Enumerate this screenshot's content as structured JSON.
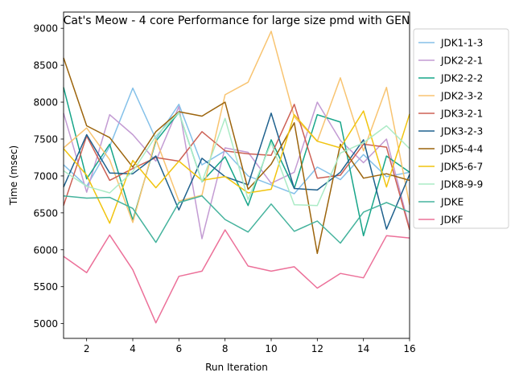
{
  "chart_data": {
    "type": "line",
    "title": "Cat's Meow - 4 core Performance for large size pmd with GEN",
    "xlabel": "Run Iteration",
    "ylabel": "Time (msec)",
    "xlim": [
      1,
      16
    ],
    "ylim": [
      4800,
      9220
    ],
    "x_ticks": [
      2,
      4,
      6,
      8,
      10,
      12,
      14,
      16
    ],
    "y_ticks": [
      5000,
      5500,
      6000,
      6500,
      7000,
      7500,
      8000,
      8500,
      9000
    ],
    "grid": false,
    "legend_position": "outside upper right",
    "x": [
      1,
      2,
      3,
      4,
      5,
      6,
      7,
      8,
      9,
      10,
      11,
      12,
      13,
      14,
      15,
      16
    ],
    "series": [
      {
        "name": "JDK1-1-3",
        "color": "#85c1e9",
        "values": [
          7150,
          6860,
          7400,
          8190,
          7500,
          7970,
          7150,
          7340,
          7000,
          6880,
          6760,
          7120,
          6950,
          7290,
          6990,
          7050
        ]
      },
      {
        "name": "JDK2-2-1",
        "color": "#c39bd3",
        "values": [
          7850,
          6780,
          7830,
          7560,
          7200,
          7940,
          6150,
          7380,
          7320,
          6900,
          7050,
          8000,
          7480,
          7180,
          7500,
          6290
        ]
      },
      {
        "name": "JDK2-2-2",
        "color": "#17a589",
        "values": [
          8200,
          6960,
          7430,
          6400,
          7470,
          7860,
          6920,
          7260,
          6600,
          7490,
          6830,
          7830,
          7730,
          6190,
          7270,
          7050
        ]
      },
      {
        "name": "JDK2-3-2",
        "color": "#f8c471",
        "values": [
          7380,
          7650,
          7220,
          6370,
          7500,
          6660,
          6740,
          8100,
          8270,
          8960,
          7800,
          7470,
          8330,
          7340,
          8200,
          6610
        ]
      },
      {
        "name": "JDK3-2-1",
        "color": "#cd6155",
        "values": [
          6600,
          7540,
          6940,
          7100,
          7250,
          7200,
          7600,
          7340,
          7300,
          7280,
          7970,
          6970,
          7010,
          7430,
          7390,
          6270
        ]
      },
      {
        "name": "JDK3-2-3",
        "color": "#1f618d",
        "values": [
          6850,
          7560,
          7040,
          7030,
          7270,
          6540,
          7240,
          6990,
          6880,
          7850,
          6830,
          6810,
          7050,
          7490,
          6280,
          7020
        ]
      },
      {
        "name": "JDK5-4-4",
        "color": "#9c640c",
        "values": [
          8600,
          7680,
          7520,
          7120,
          7600,
          7870,
          7810,
          8000,
          6820,
          7160,
          7720,
          5950,
          7430,
          6970,
          7030,
          6940
        ]
      },
      {
        "name": "JDK5-6-7",
        "color": "#f1c40f",
        "values": [
          7370,
          7010,
          6360,
          7210,
          6840,
          7200,
          6940,
          6990,
          6770,
          6820,
          7830,
          7470,
          7380,
          7880,
          6850,
          7840
        ]
      },
      {
        "name": "JDK8-9-9",
        "color": "#abebc6",
        "values": [
          7070,
          6860,
          6770,
          7060,
          7540,
          7860,
          6920,
          7780,
          6680,
          7450,
          6610,
          6600,
          7310,
          7450,
          7680,
          7370
        ]
      },
      {
        "name": "JDKE",
        "color": "#45b39d",
        "values": [
          6730,
          6700,
          6710,
          6560,
          6100,
          6640,
          6730,
          6410,
          6240,
          6620,
          6250,
          6390,
          6090,
          6510,
          6640,
          6510
        ]
      },
      {
        "name": "JDKF",
        "color": "#ec7099",
        "values": [
          5910,
          5690,
          6200,
          5730,
          5010,
          5640,
          5710,
          6270,
          5780,
          5710,
          5770,
          5480,
          5680,
          5620,
          6190,
          6160
        ]
      }
    ]
  }
}
